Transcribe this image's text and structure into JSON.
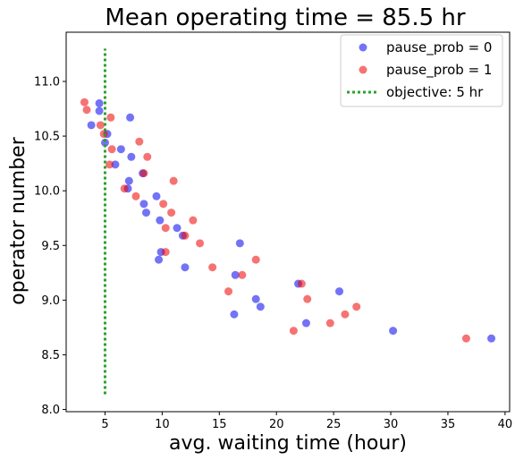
{
  "chart_data": {
    "type": "scatter",
    "title": "Mean operating time = 85.5 hr",
    "xlabel": "avg. waiting time (hour)",
    "ylabel": "operator number",
    "xlim": [
      1.6,
      40.4
    ],
    "ylim": [
      7.98,
      11.45
    ],
    "xticks": [
      5,
      10,
      15,
      20,
      25,
      30,
      35,
      40
    ],
    "yticks": [
      8.0,
      8.5,
      9.0,
      9.5,
      10.0,
      10.5,
      11.0
    ],
    "xtick_labels": [
      "5",
      "10",
      "15",
      "20",
      "25",
      "30",
      "35",
      "40"
    ],
    "ytick_labels": [
      "8.0",
      "8.5",
      "9.0",
      "9.5",
      "10.0",
      "10.5",
      "11.0"
    ],
    "grid": false,
    "legend_position": "top-right",
    "series": [
      {
        "name": "pause_prob = 0",
        "color": "#0000ee",
        "marker": "circle",
        "points": [
          [
            4.5,
            10.8
          ],
          [
            4.5,
            10.73
          ],
          [
            3.8,
            10.6
          ],
          [
            5.2,
            10.52
          ],
          [
            5.0,
            10.44
          ],
          [
            7.2,
            10.67
          ],
          [
            6.4,
            10.38
          ],
          [
            7.3,
            10.31
          ],
          [
            5.9,
            10.24
          ],
          [
            8.3,
            10.16
          ],
          [
            7.1,
            10.09
          ],
          [
            7.0,
            10.02
          ],
          [
            9.5,
            9.95
          ],
          [
            8.4,
            9.88
          ],
          [
            9.8,
            9.73
          ],
          [
            8.6,
            9.8
          ],
          [
            11.3,
            9.66
          ],
          [
            11.8,
            9.59
          ],
          [
            16.8,
            9.52
          ],
          [
            9.9,
            9.44
          ],
          [
            9.7,
            9.37
          ],
          [
            12.0,
            9.3
          ],
          [
            16.4,
            9.23
          ],
          [
            21.9,
            9.15
          ],
          [
            25.5,
            9.08
          ],
          [
            18.2,
            9.01
          ],
          [
            18.6,
            8.94
          ],
          [
            16.3,
            8.87
          ],
          [
            22.6,
            8.79
          ],
          [
            30.2,
            8.72
          ],
          [
            38.8,
            8.65
          ]
        ]
      },
      {
        "name": "pause_prob = 1",
        "color": "#ee0000",
        "marker": "circle",
        "points": [
          [
            3.2,
            10.81
          ],
          [
            3.4,
            10.74
          ],
          [
            5.5,
            10.67
          ],
          [
            4.6,
            10.6
          ],
          [
            4.9,
            10.52
          ],
          [
            8.0,
            10.45
          ],
          [
            5.6,
            10.38
          ],
          [
            8.7,
            10.31
          ],
          [
            5.4,
            10.24
          ],
          [
            8.4,
            10.16
          ],
          [
            11.0,
            10.09
          ],
          [
            6.7,
            10.02
          ],
          [
            7.7,
            9.95
          ],
          [
            10.1,
            9.88
          ],
          [
            10.8,
            9.8
          ],
          [
            12.7,
            9.73
          ],
          [
            10.3,
            9.66
          ],
          [
            12.0,
            9.59
          ],
          [
            13.3,
            9.52
          ],
          [
            10.3,
            9.44
          ],
          [
            18.2,
            9.37
          ],
          [
            14.4,
            9.3
          ],
          [
            17.0,
            9.23
          ],
          [
            22.2,
            9.15
          ],
          [
            15.8,
            9.08
          ],
          [
            22.7,
            9.01
          ],
          [
            27.0,
            8.94
          ],
          [
            26.0,
            8.87
          ],
          [
            24.7,
            8.79
          ],
          [
            21.5,
            8.72
          ],
          [
            36.6,
            8.65
          ]
        ]
      }
    ],
    "objective": {
      "name": "objective: 5 hr",
      "x": 5,
      "y_range": [
        8.14,
        11.3
      ],
      "color": "#2ca02c",
      "style": "dotted"
    }
  }
}
